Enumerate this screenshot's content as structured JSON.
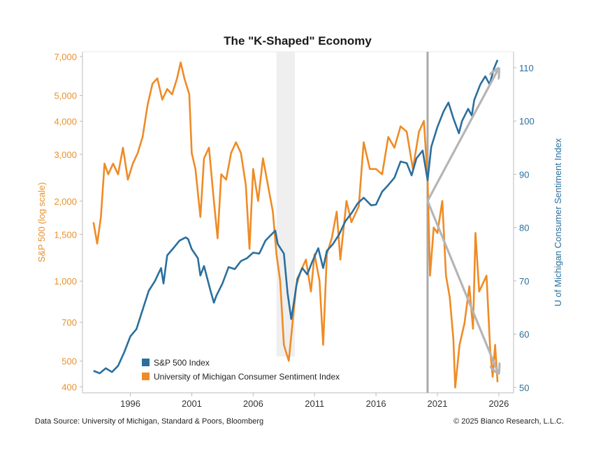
{
  "chart_data": {
    "type": "line",
    "title": "The \"K-Shaped\" Economy",
    "ylabel_left": "S&P 500 (log scale)",
    "ylabel_right": "U of Michigan Consumer Sentiment Index",
    "left_axis": {
      "scale": "log",
      "ylim": [
        380,
        7300
      ],
      "ticks": [
        {
          "v": 400,
          "label": "400"
        },
        {
          "v": 500,
          "label": "500"
        },
        {
          "v": 700,
          "label": "700"
        },
        {
          "v": 1000,
          "label": "1,000"
        },
        {
          "v": 1500,
          "label": "1,500"
        },
        {
          "v": 2000,
          "label": "2,000"
        },
        {
          "v": 3000,
          "label": "3,000"
        },
        {
          "v": 4000,
          "label": "4,000"
        },
        {
          "v": 5000,
          "label": "5,000"
        },
        {
          "v": 7000,
          "label": "7,000"
        }
      ]
    },
    "right_axis": {
      "scale": "linear",
      "ylim": [
        49,
        113
      ],
      "ticks": [
        {
          "v": 50,
          "label": "50"
        },
        {
          "v": 60,
          "label": "60"
        },
        {
          "v": 70,
          "label": "70"
        },
        {
          "v": 80,
          "label": "80"
        },
        {
          "v": 90,
          "label": "90"
        },
        {
          "v": 100,
          "label": "100"
        },
        {
          "v": 110,
          "label": "110"
        }
      ]
    },
    "x_axis": {
      "xlim": [
        1992.1,
        2027.2
      ],
      "ticks": [
        {
          "v": 1996,
          "label": "1996"
        },
        {
          "v": 2001,
          "label": "2001"
        },
        {
          "v": 2006,
          "label": "2006"
        },
        {
          "v": 2011,
          "label": "2011"
        },
        {
          "v": 2016,
          "label": "2016"
        },
        {
          "v": 2021,
          "label": "2021"
        },
        {
          "v": 2026,
          "label": "2026"
        }
      ]
    },
    "shaded_region": [
      2007.9,
      2009.4
    ],
    "vertical_line": 2020.2,
    "arrows": [
      {
        "from": [
          2020.2,
          85
        ],
        "to": [
          2025.9,
          109.5
        ],
        "axis": "right"
      },
      {
        "from": [
          2020.2,
          85
        ],
        "to": [
          2025.9,
          53
        ],
        "axis": "right"
      }
    ],
    "legend": {
      "placement": "bottom-left"
    },
    "series": [
      {
        "name": "S&P 500 Index",
        "axis": "left",
        "color": "#2a6f9e",
        "points": [
          [
            1993.0,
            460
          ],
          [
            1993.5,
            450
          ],
          [
            1994.0,
            470
          ],
          [
            1994.5,
            455
          ],
          [
            1995.0,
            480
          ],
          [
            1995.5,
            540
          ],
          [
            1996.0,
            620
          ],
          [
            1996.5,
            660
          ],
          [
            1997.0,
            780
          ],
          [
            1997.5,
            920
          ],
          [
            1998.0,
            1000
          ],
          [
            1998.5,
            1120
          ],
          [
            1998.7,
            980
          ],
          [
            1999.0,
            1250
          ],
          [
            1999.5,
            1330
          ],
          [
            2000.0,
            1420
          ],
          [
            2000.5,
            1460
          ],
          [
            2000.7,
            1440
          ],
          [
            2001.0,
            1320
          ],
          [
            2001.5,
            1220
          ],
          [
            2001.7,
            1050
          ],
          [
            2002.0,
            1140
          ],
          [
            2002.5,
            930
          ],
          [
            2002.8,
            830
          ],
          [
            2003.0,
            880
          ],
          [
            2003.5,
            980
          ],
          [
            2004.0,
            1130
          ],
          [
            2004.5,
            1110
          ],
          [
            2005.0,
            1190
          ],
          [
            2005.5,
            1220
          ],
          [
            2006.0,
            1280
          ],
          [
            2006.5,
            1270
          ],
          [
            2007.0,
            1420
          ],
          [
            2007.5,
            1500
          ],
          [
            2007.8,
            1550
          ],
          [
            2008.0,
            1380
          ],
          [
            2008.5,
            1270
          ],
          [
            2008.8,
            900
          ],
          [
            2009.1,
            720
          ],
          [
            2009.3,
            820
          ],
          [
            2009.6,
            1020
          ],
          [
            2010.0,
            1120
          ],
          [
            2010.4,
            1060
          ],
          [
            2010.8,
            1180
          ],
          [
            2011.3,
            1330
          ],
          [
            2011.7,
            1120
          ],
          [
            2012.0,
            1300
          ],
          [
            2012.5,
            1380
          ],
          [
            2013.0,
            1500
          ],
          [
            2013.5,
            1680
          ],
          [
            2014.0,
            1800
          ],
          [
            2014.5,
            1960
          ],
          [
            2015.0,
            2060
          ],
          [
            2015.6,
            1930
          ],
          [
            2016.0,
            1940
          ],
          [
            2016.5,
            2170
          ],
          [
            2017.0,
            2300
          ],
          [
            2017.5,
            2450
          ],
          [
            2018.0,
            2820
          ],
          [
            2018.5,
            2780
          ],
          [
            2018.9,
            2500
          ],
          [
            2019.3,
            2900
          ],
          [
            2019.8,
            3100
          ],
          [
            2020.2,
            2400
          ],
          [
            2020.5,
            3200
          ],
          [
            2021.0,
            3800
          ],
          [
            2021.5,
            4350
          ],
          [
            2021.9,
            4700
          ],
          [
            2022.3,
            4100
          ],
          [
            2022.75,
            3600
          ],
          [
            2023.0,
            4000
          ],
          [
            2023.5,
            4450
          ],
          [
            2023.8,
            4200
          ],
          [
            2024.0,
            4800
          ],
          [
            2024.5,
            5500
          ],
          [
            2024.9,
            5900
          ],
          [
            2025.25,
            5500
          ],
          [
            2025.6,
            6300
          ],
          [
            2025.9,
            6800
          ]
        ]
      },
      {
        "name": "University of Michigan Consumer Sentiment Index",
        "axis": "right",
        "color": "#ef8b25",
        "points": [
          [
            1993.0,
            81
          ],
          [
            1993.3,
            77
          ],
          [
            1993.6,
            82
          ],
          [
            1993.9,
            92
          ],
          [
            1994.2,
            90
          ],
          [
            1994.6,
            92
          ],
          [
            1995.0,
            90
          ],
          [
            1995.4,
            95
          ],
          [
            1995.8,
            89
          ],
          [
            1996.2,
            92
          ],
          [
            1996.6,
            94
          ],
          [
            1997.0,
            97
          ],
          [
            1997.4,
            103
          ],
          [
            1997.8,
            107
          ],
          [
            1998.2,
            108
          ],
          [
            1998.6,
            104
          ],
          [
            1999.0,
            106
          ],
          [
            1999.4,
            105
          ],
          [
            1999.8,
            108
          ],
          [
            2000.1,
            111
          ],
          [
            2000.4,
            108
          ],
          [
            2000.8,
            105
          ],
          [
            2001.0,
            94
          ],
          [
            2001.3,
            91
          ],
          [
            2001.7,
            82
          ],
          [
            2002.0,
            93
          ],
          [
            2002.4,
            95
          ],
          [
            2002.8,
            85
          ],
          [
            2003.1,
            78
          ],
          [
            2003.4,
            90
          ],
          [
            2003.8,
            89
          ],
          [
            2004.2,
            94
          ],
          [
            2004.6,
            96
          ],
          [
            2005.0,
            94
          ],
          [
            2005.4,
            88
          ],
          [
            2005.7,
            76
          ],
          [
            2006.0,
            91
          ],
          [
            2006.4,
            85
          ],
          [
            2006.8,
            93
          ],
          [
            2007.2,
            88
          ],
          [
            2007.6,
            83
          ],
          [
            2007.9,
            75
          ],
          [
            2008.2,
            70
          ],
          [
            2008.5,
            58
          ],
          [
            2008.9,
            55
          ],
          [
            2009.2,
            62
          ],
          [
            2009.5,
            69
          ],
          [
            2009.9,
            72
          ],
          [
            2010.3,
            74
          ],
          [
            2010.7,
            68
          ],
          [
            2011.0,
            75
          ],
          [
            2011.4,
            70
          ],
          [
            2011.7,
            58
          ],
          [
            2012.0,
            75
          ],
          [
            2012.4,
            78
          ],
          [
            2012.8,
            83
          ],
          [
            2013.1,
            74
          ],
          [
            2013.6,
            85
          ],
          [
            2014.0,
            81
          ],
          [
            2014.6,
            84
          ],
          [
            2015.0,
            96
          ],
          [
            2015.5,
            91
          ],
          [
            2016.0,
            91
          ],
          [
            2016.5,
            90
          ],
          [
            2017.0,
            97
          ],
          [
            2017.5,
            95
          ],
          [
            2018.0,
            99
          ],
          [
            2018.5,
            98
          ],
          [
            2019.0,
            91
          ],
          [
            2019.5,
            98
          ],
          [
            2019.9,
            100
          ],
          [
            2020.2,
            89
          ],
          [
            2020.4,
            71
          ],
          [
            2020.7,
            80
          ],
          [
            2021.0,
            79
          ],
          [
            2021.4,
            85
          ],
          [
            2021.7,
            71
          ],
          [
            2022.0,
            67
          ],
          [
            2022.3,
            59
          ],
          [
            2022.45,
            50
          ],
          [
            2022.8,
            58
          ],
          [
            2023.2,
            62
          ],
          [
            2023.6,
            69
          ],
          [
            2023.9,
            61
          ],
          [
            2024.1,
            79
          ],
          [
            2024.4,
            68
          ],
          [
            2024.8,
            70
          ],
          [
            2025.0,
            71
          ],
          [
            2025.3,
            57
          ],
          [
            2025.5,
            52
          ],
          [
            2025.7,
            58
          ],
          [
            2025.9,
            51
          ]
        ]
      }
    ]
  },
  "footer": {
    "source": "Data Source: University of Michigan, Standard & Poors, Bloomberg",
    "copyright": "© 2025 Bianco Research, L.L.C."
  }
}
